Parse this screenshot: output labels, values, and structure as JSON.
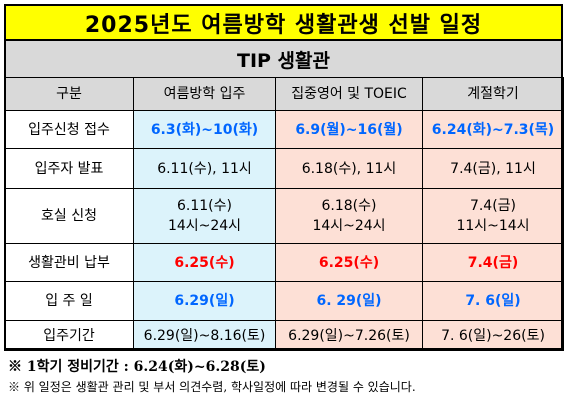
{
  "title": "2025년도 여름방학 생활관생 선발 일정",
  "subtitle": "TIP 생활관",
  "headers": [
    "구분",
    "여름방학 입주",
    "집중영어 및 TOEIC",
    "계절학기"
  ],
  "rows": [
    {
      "label": "입주신청 접수",
      "c1": "6.3(화)~10(화)",
      "c2": "6.9(월)~16(월)",
      "c3": "6.24(화)~7.3(목)"
    },
    {
      "label": "입주자 발표",
      "c1": "6.11(수), 11시",
      "c2": "6.18(수), 11시",
      "c3": "7.4(금), 11시"
    },
    {
      "label": "호실 신청",
      "c1_line1": "6.11(수)",
      "c1_line2": "14시~24시",
      "c2_line1": "6.18(수)",
      "c2_line2": "14시~24시",
      "c3_line1": "7.4(금)",
      "c3_line2": "11시~14시"
    },
    {
      "label": "생활관비 납부",
      "c1": "6.25(수)",
      "c2": "6.25(수)",
      "c3": "7.4(금)"
    },
    {
      "label": "입 주 일",
      "c1": "6.29(일)",
      "c2": "6. 29(일)",
      "c3": "7. 6(일)"
    },
    {
      "label": "입주기간",
      "c1": "6.29(일)~8.16(토)",
      "c2": "6.29(일)~7.26(토)",
      "c3": "7. 6(일)~26(토)"
    }
  ],
  "notes": {
    "note1": "※ 1학기 정비기간 : 6.24(화)~6.28(토)",
    "note2": "※ 위 일정은 생활관 관리 및 부서 의견수렴, 학사일정에 따라 변경될 수 있습니다."
  },
  "colors": {
    "title_bg": "#ffff00",
    "header_bg": "#d9d9d9",
    "col1_bg": "#dcf3fb",
    "col23_bg": "#fde0d6",
    "accent_blue": "#0066ff",
    "accent_red": "#ff0000"
  }
}
